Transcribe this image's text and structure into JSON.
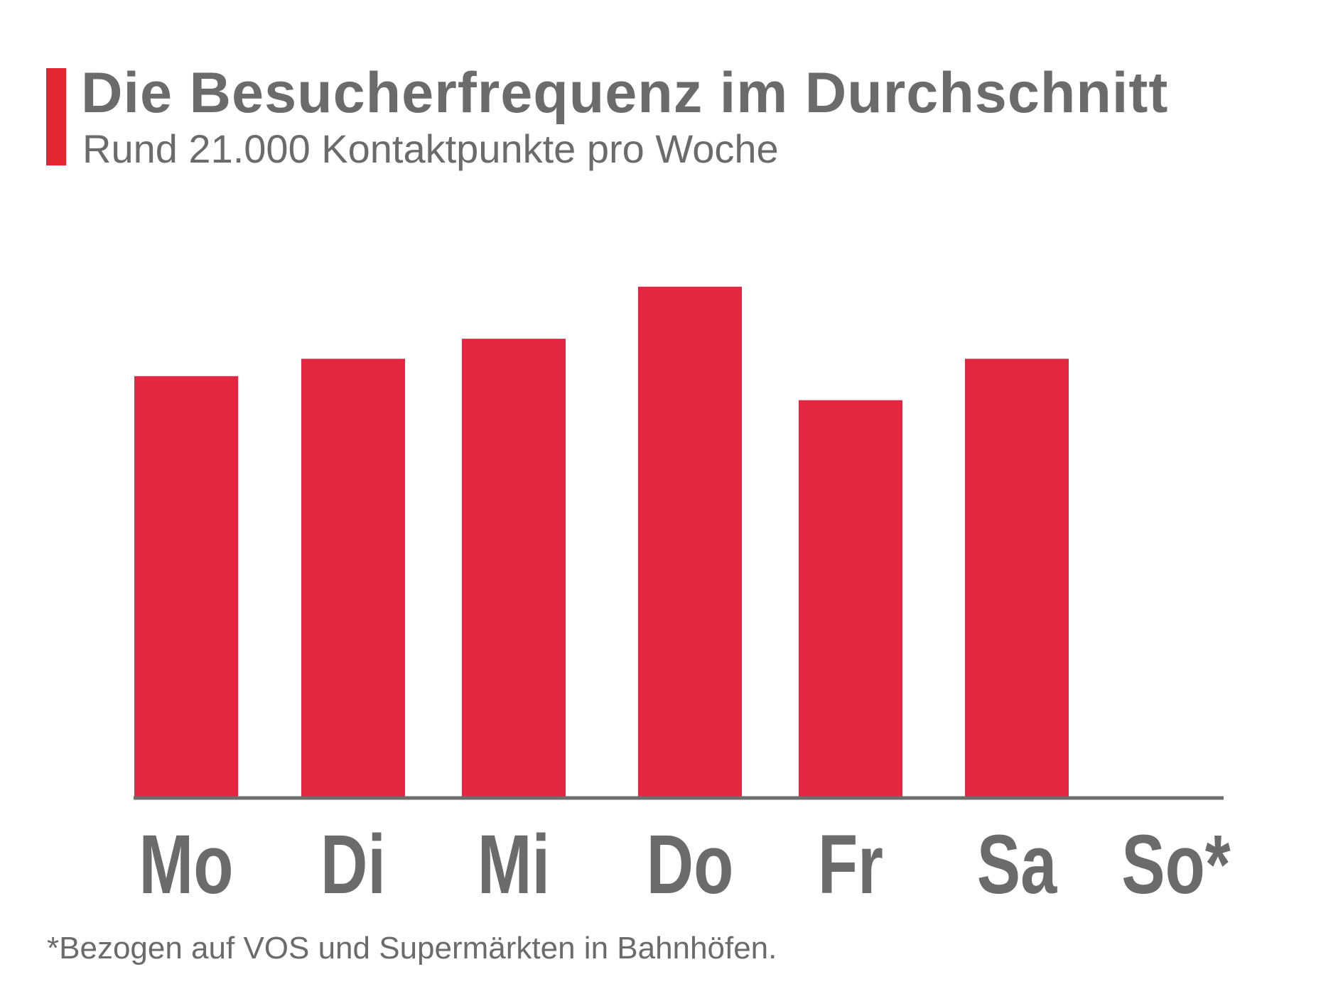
{
  "colors": {
    "accent": "#e3262f",
    "bar": "#e32741",
    "text": "#6b6b6b",
    "axis": "#6d6d6d"
  },
  "header": {
    "title": "Die Besucherfrequenz im Durchschnitt",
    "subtitle": "Rund 21.000 Kontaktpunkte pro Woche"
  },
  "chart_data": {
    "type": "bar",
    "title": "",
    "xlabel": "",
    "ylabel": "",
    "categories": [
      "Mo",
      "Di",
      "Mi",
      "Do",
      "Fr",
      "Sa",
      "So*"
    ],
    "values": [
      3150,
      3280,
      3430,
      3820,
      2970,
      3280,
      0
    ],
    "ylim": [
      0,
      4000
    ],
    "grid": false
  },
  "footnote": "*Bezogen auf VOS und Supermärkten in Bahnhöfen."
}
